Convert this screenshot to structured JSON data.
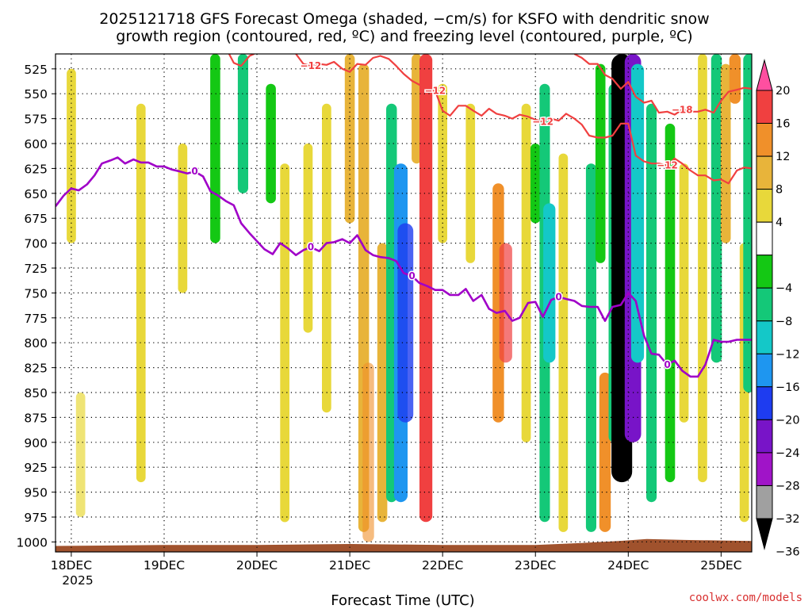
{
  "title_line1": "2025121718 GFS Forecast Omega (shaded, −cm/s) for KSFO with dendritic snow",
  "title_line2": "growth region (contoured, red, ºC) and freezing level (contoured, purple, ºC)",
  "xlabel": "Forecast Time (UTC)",
  "credit": "coolwx.com/models",
  "year_label": "2025",
  "colors": {
    "freezing_level": "#a000c8",
    "dgz": "#f04040",
    "terrain": "#a0522d",
    "grid": "#000000"
  },
  "chart_data": {
    "type": "heatmap",
    "title": "2025121718 GFS Forecast Omega (shaded, −cm/s) for KSFO with dendritic snow growth region (contoured, red, ºC) and freezing level (contoured, purple, ºC)",
    "xlabel": "Forecast Time (UTC)",
    "ylabel": "",
    "x_ticks": [
      "18DEC",
      "19DEC",
      "20DEC",
      "21DEC",
      "22DEC",
      "23DEC",
      "24DEC",
      "25DEC"
    ],
    "y_ticks": [
      525,
      550,
      575,
      600,
      625,
      650,
      675,
      700,
      725,
      750,
      775,
      800,
      825,
      850,
      875,
      900,
      925,
      950,
      975,
      1000
    ],
    "xlim_days": [
      17.83,
      25.33
    ],
    "ylim_hpa": [
      1010,
      510
    ],
    "grid": true,
    "colorbar": {
      "labels": [
        "20",
        "16",
        "12",
        "8",
        "4",
        "−4",
        "−8",
        "−12",
        "−16",
        "−20",
        "−24",
        "−28",
        "−32",
        "−36"
      ],
      "bins": [
        {
          "from": 20,
          "to": 24,
          "color": "#ff4fa0",
          "end": "arrow"
        },
        {
          "from": 16,
          "to": 20,
          "color": "#f04040"
        },
        {
          "from": 12,
          "to": 16,
          "color": "#f0902a"
        },
        {
          "from": 8,
          "to": 12,
          "color": "#e8b43a"
        },
        {
          "from": 4,
          "to": 8,
          "color": "#e8d83a"
        },
        {
          "from": -4,
          "to": 4,
          "color": "#ffffff"
        },
        {
          "from": -8,
          "to": -4,
          "color": "#14c814"
        },
        {
          "from": -12,
          "to": -8,
          "color": "#14c878"
        },
        {
          "from": -16,
          "to": -12,
          "color": "#14c8c8"
        },
        {
          "from": -20,
          "to": -16,
          "color": "#1e96f0"
        },
        {
          "from": -24,
          "to": -20,
          "color": "#1e3cf0"
        },
        {
          "from": -28,
          "to": -24,
          "color": "#7814c8"
        },
        {
          "from": -32,
          "to": -28,
          "color": "#a014c8"
        },
        {
          "from": -36,
          "to": -32,
          "color": "#a0a0a0"
        },
        {
          "from": -40,
          "to": -36,
          "color": "#000000",
          "end": "arrow"
        }
      ]
    },
    "series": [
      {
        "name": "0",
        "kind": "freezing_level",
        "unit": "hPa",
        "points": [
          [
            17.83,
            663
          ],
          [
            17.92,
            652
          ],
          [
            18.0,
            645
          ],
          [
            18.08,
            647
          ],
          [
            18.17,
            641
          ],
          [
            18.25,
            632
          ],
          [
            18.33,
            620
          ],
          [
            18.42,
            617
          ],
          [
            18.5,
            614
          ],
          [
            18.58,
            620
          ],
          [
            18.67,
            616
          ],
          [
            18.75,
            619
          ],
          [
            18.83,
            619
          ],
          [
            18.92,
            623
          ],
          [
            19.0,
            623
          ],
          [
            19.08,
            626
          ],
          [
            19.17,
            628
          ],
          [
            19.25,
            630
          ],
          [
            19.33,
            628
          ],
          [
            19.42,
            633
          ],
          [
            19.5,
            648
          ],
          [
            19.58,
            652
          ],
          [
            19.67,
            658
          ],
          [
            19.75,
            662
          ],
          [
            19.83,
            680
          ],
          [
            19.92,
            690
          ],
          [
            20.0,
            698
          ],
          [
            20.08,
            706
          ],
          [
            20.17,
            711
          ],
          [
            20.25,
            700
          ],
          [
            20.33,
            705
          ],
          [
            20.42,
            712
          ],
          [
            20.5,
            707
          ],
          [
            20.58,
            704
          ],
          [
            20.67,
            708
          ],
          [
            20.75,
            700
          ],
          [
            20.83,
            699
          ],
          [
            20.92,
            696
          ],
          [
            21.0,
            700
          ],
          [
            21.08,
            692
          ],
          [
            21.17,
            707
          ],
          [
            21.25,
            712
          ],
          [
            21.33,
            714
          ],
          [
            21.42,
            715
          ],
          [
            21.5,
            718
          ],
          [
            21.58,
            730
          ],
          [
            21.67,
            733
          ],
          [
            21.75,
            740
          ],
          [
            21.83,
            743
          ],
          [
            21.92,
            747
          ],
          [
            22.0,
            747
          ],
          [
            22.08,
            752
          ],
          [
            22.17,
            752
          ],
          [
            22.25,
            746
          ],
          [
            22.33,
            758
          ],
          [
            22.42,
            752
          ],
          [
            22.5,
            766
          ],
          [
            22.58,
            770
          ],
          [
            22.67,
            768
          ],
          [
            22.75,
            778
          ],
          [
            22.83,
            775
          ],
          [
            22.92,
            760
          ],
          [
            23.0,
            759
          ],
          [
            23.08,
            774
          ],
          [
            23.17,
            757
          ],
          [
            23.25,
            754
          ],
          [
            23.33,
            756
          ],
          [
            23.42,
            758
          ],
          [
            23.5,
            763
          ],
          [
            23.58,
            764
          ],
          [
            23.67,
            764
          ],
          [
            23.75,
            778
          ],
          [
            23.83,
            764
          ],
          [
            23.92,
            762
          ],
          [
            24.0,
            750
          ],
          [
            24.08,
            758
          ],
          [
            24.17,
            793
          ],
          [
            24.25,
            811
          ],
          [
            24.33,
            812
          ],
          [
            24.42,
            822
          ],
          [
            24.5,
            818
          ],
          [
            24.58,
            828
          ],
          [
            24.67,
            834
          ],
          [
            24.75,
            834
          ],
          [
            24.83,
            822
          ],
          [
            24.92,
            797
          ],
          [
            25.0,
            799
          ],
          [
            25.08,
            799
          ],
          [
            25.17,
            797
          ],
          [
            25.25,
            797
          ],
          [
            25.33,
            797
          ]
        ]
      },
      {
        "name": "−12",
        "kind": "dgz",
        "unit": "hPa",
        "points": [
          [
            19.7,
            510
          ],
          [
            19.75,
            519
          ],
          [
            19.83,
            522
          ],
          [
            19.92,
            512
          ],
          [
            19.97,
            510
          ]
        ]
      },
      {
        "name": "−12",
        "kind": "dgz",
        "unit": "hPa",
        "points": [
          [
            20.42,
            510
          ],
          [
            20.5,
            520
          ],
          [
            20.58,
            522
          ],
          [
            20.67,
            520
          ],
          [
            20.75,
            521
          ],
          [
            20.83,
            518
          ],
          [
            20.92,
            525
          ],
          [
            21.0,
            528
          ],
          [
            21.08,
            520
          ],
          [
            21.17,
            521
          ],
          [
            21.25,
            514
          ],
          [
            21.33,
            512
          ],
          [
            21.42,
            515
          ],
          [
            21.5,
            522
          ],
          [
            21.58,
            530
          ],
          [
            21.67,
            537
          ],
          [
            21.75,
            541
          ],
          [
            21.83,
            547
          ],
          [
            21.92,
            547
          ],
          [
            22.0,
            567
          ],
          [
            22.08,
            572
          ],
          [
            22.17,
            562
          ],
          [
            22.25,
            562
          ],
          [
            22.33,
            567
          ],
          [
            22.42,
            572
          ],
          [
            22.5,
            565
          ],
          [
            22.58,
            570
          ],
          [
            22.67,
            572
          ],
          [
            22.75,
            575
          ],
          [
            22.83,
            571
          ],
          [
            22.92,
            573
          ],
          [
            23.0,
            576
          ],
          [
            23.08,
            578
          ],
          [
            23.17,
            575
          ],
          [
            23.25,
            577
          ],
          [
            23.33,
            570
          ],
          [
            23.42,
            575
          ],
          [
            23.5,
            581
          ],
          [
            23.58,
            592
          ],
          [
            23.67,
            594
          ],
          [
            23.75,
            594
          ],
          [
            23.83,
            592
          ],
          [
            23.92,
            580
          ],
          [
            24.0,
            580
          ],
          [
            24.08,
            612
          ],
          [
            24.17,
            618
          ],
          [
            24.25,
            620
          ],
          [
            24.33,
            620
          ],
          [
            24.42,
            622
          ],
          [
            24.5,
            615
          ],
          [
            24.58,
            620
          ],
          [
            24.67,
            627
          ],
          [
            24.75,
            632
          ],
          [
            24.83,
            632
          ],
          [
            24.92,
            637
          ],
          [
            25.0,
            636
          ],
          [
            25.08,
            640
          ],
          [
            25.17,
            627
          ],
          [
            25.25,
            624
          ],
          [
            25.33,
            625
          ]
        ]
      },
      {
        "name": "−18",
        "kind": "dgz",
        "unit": "hPa",
        "points": [
          [
            23.42,
            510
          ],
          [
            23.5,
            514
          ],
          [
            23.58,
            520
          ],
          [
            23.67,
            520
          ],
          [
            23.75,
            531
          ],
          [
            23.83,
            535
          ],
          [
            23.92,
            545
          ],
          [
            24.0,
            538
          ],
          [
            24.08,
            553
          ],
          [
            24.17,
            559
          ],
          [
            24.25,
            557
          ],
          [
            24.33,
            569
          ],
          [
            24.42,
            568
          ],
          [
            24.5,
            571
          ],
          [
            24.58,
            566
          ],
          [
            24.67,
            568
          ],
          [
            24.75,
            568
          ],
          [
            24.83,
            566
          ],
          [
            24.92,
            569
          ],
          [
            25.0,
            557
          ],
          [
            25.08,
            548
          ],
          [
            25.17,
            546
          ],
          [
            25.25,
            544
          ],
          [
            25.33,
            545
          ]
        ]
      }
    ]
  }
}
